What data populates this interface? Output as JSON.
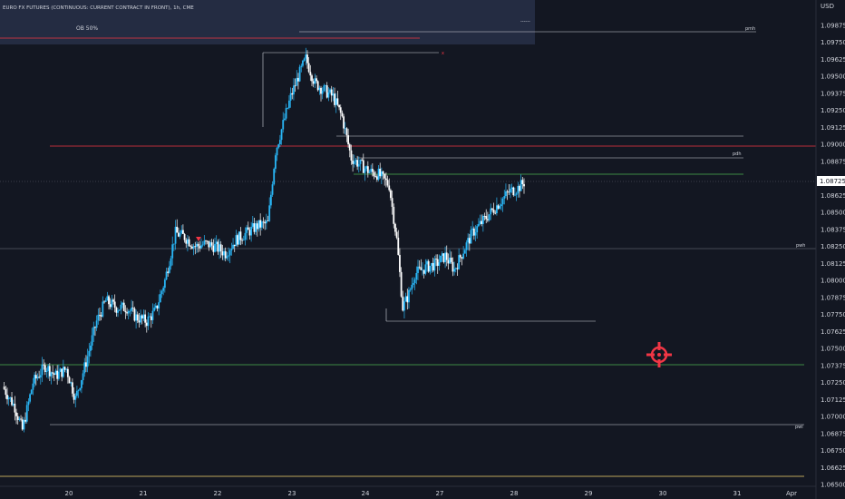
{
  "header": {
    "symbol_title": "EURO FX FUTURES (CONTINUOUS: CURRENT CONTRACT IN FRONT), 1h, CME",
    "currency": "USD",
    "ob_label": "OB 50%",
    "dashes": "------"
  },
  "price_scale": {
    "labels": [
      "1.09875",
      "1.09750",
      "1.09625",
      "1.09500",
      "1.09375",
      "1.09250",
      "1.09125",
      "1.09000",
      "1.08875",
      "1.08750",
      "1.08625",
      "1.08500",
      "1.08375",
      "1.08250",
      "1.08125",
      "1.08000",
      "1.07875",
      "1.07750",
      "1.07625",
      "1.07500",
      "1.07375",
      "1.07250",
      "1.07125",
      "1.07000",
      "1.06875",
      "1.06750",
      "1.06625",
      "1.06500"
    ],
    "current_price": "1.08725"
  },
  "time_scale": {
    "labels": [
      "20",
      "21",
      "22",
      "23",
      "24",
      "27",
      "28",
      "29",
      "30",
      "31",
      "Apr"
    ]
  },
  "levels": {
    "pmh_label": "pmh",
    "pdh_label": "pdh",
    "pwh_label": "pwh",
    "pwl_label": "pwl",
    "x_marker": "x"
  },
  "colors": {
    "background": "#131722",
    "candle_up": "#29b6f6",
    "candle_down": "#ffffff",
    "red_level": "#f23645",
    "green_level": "#4caf50",
    "yellow_level": "#f5d76e",
    "white_level": "#d1d4dc",
    "grey_level": "#787b86",
    "zone": "#283048",
    "target": "#f23645"
  },
  "chart_data": {
    "type": "candlestick",
    "symbol": "EURO FX FUTURES (CONTINUOUS: CURRENT CONTRACT IN FRONT)",
    "interval": "1h",
    "exchange": "CME",
    "ylim": [
      1.0645,
      1.0995
    ],
    "current_price": 1.08725,
    "waypoints": [
      [
        0,
        1.0722
      ],
      [
        8,
        1.0707
      ],
      [
        13,
        1.069
      ],
      [
        20,
        1.0725
      ],
      [
        28,
        1.0737
      ],
      [
        35,
        1.073
      ],
      [
        42,
        1.0735
      ],
      [
        48,
        1.0713
      ],
      [
        55,
        1.074
      ],
      [
        62,
        1.077
      ],
      [
        68,
        1.0785
      ],
      [
        75,
        1.078
      ],
      [
        82,
        1.078
      ],
      [
        88,
        1.0773
      ],
      [
        95,
        1.077
      ],
      [
        101,
        1.0778
      ],
      [
        107,
        1.08
      ],
      [
        114,
        1.0835
      ],
      [
        120,
        1.0832
      ],
      [
        127,
        1.0825
      ],
      [
        134,
        1.0827
      ],
      [
        140,
        1.0825
      ],
      [
        147,
        1.082
      ],
      [
        154,
        1.083
      ],
      [
        161,
        1.0835
      ],
      [
        168,
        1.084
      ],
      [
        175,
        1.0842
      ],
      [
        180,
        1.0895
      ],
      [
        185,
        1.0915
      ],
      [
        190,
        1.0935
      ],
      [
        195,
        1.095
      ],
      [
        200,
        1.0963
      ],
      [
        206,
        1.0945
      ],
      [
        212,
        1.094
      ],
      [
        218,
        1.0935
      ],
      [
        224,
        1.092
      ],
      [
        230,
        1.089
      ],
      [
        236,
        1.0885
      ],
      [
        242,
        1.088
      ],
      [
        248,
        1.0878
      ],
      [
        255,
        1.087
      ],
      [
        260,
        1.083
      ],
      [
        264,
        1.078
      ],
      [
        268,
        1.079
      ],
      [
        272,
        1.0805
      ],
      [
        280,
        1.081
      ],
      [
        286,
        1.0812
      ],
      [
        292,
        1.0818
      ],
      [
        298,
        1.0808
      ],
      [
        304,
        1.0822
      ],
      [
        310,
        1.0835
      ],
      [
        318,
        1.0845
      ],
      [
        326,
        1.0855
      ],
      [
        334,
        1.0865
      ],
      [
        340,
        1.0868
      ],
      [
        344,
        1.0872
      ]
    ],
    "levels": [
      {
        "name": "OB 50%",
        "price": 1.09745,
        "color": "#f23645"
      },
      {
        "name": "pmh",
        "price": 1.0978,
        "color": "#d1d4dc"
      },
      {
        "name": "x",
        "price": 1.09655,
        "color": "#d1d4dc"
      },
      {
        "name": "red level",
        "price": 1.0895,
        "color": "#f23645"
      },
      {
        "name": "white level",
        "price": 1.0905,
        "color": "#d1d4dc"
      },
      {
        "name": "pdh",
        "price": 1.0884,
        "color": "#d1d4dc"
      },
      {
        "name": "green level",
        "price": 1.08765,
        "color": "#4caf50"
      },
      {
        "name": "pwh",
        "price": 1.08235,
        "color": "#787b86"
      },
      {
        "name": "low level",
        "price": 1.077,
        "color": "#d1d4dc"
      },
      {
        "name": "green level low",
        "price": 1.0733,
        "color": "#4caf50"
      },
      {
        "name": "pwl",
        "price": 1.06835,
        "color": "#d1d4dc"
      },
      {
        "name": "yellow level",
        "price": 1.06525,
        "color": "#f5d76e"
      }
    ]
  }
}
